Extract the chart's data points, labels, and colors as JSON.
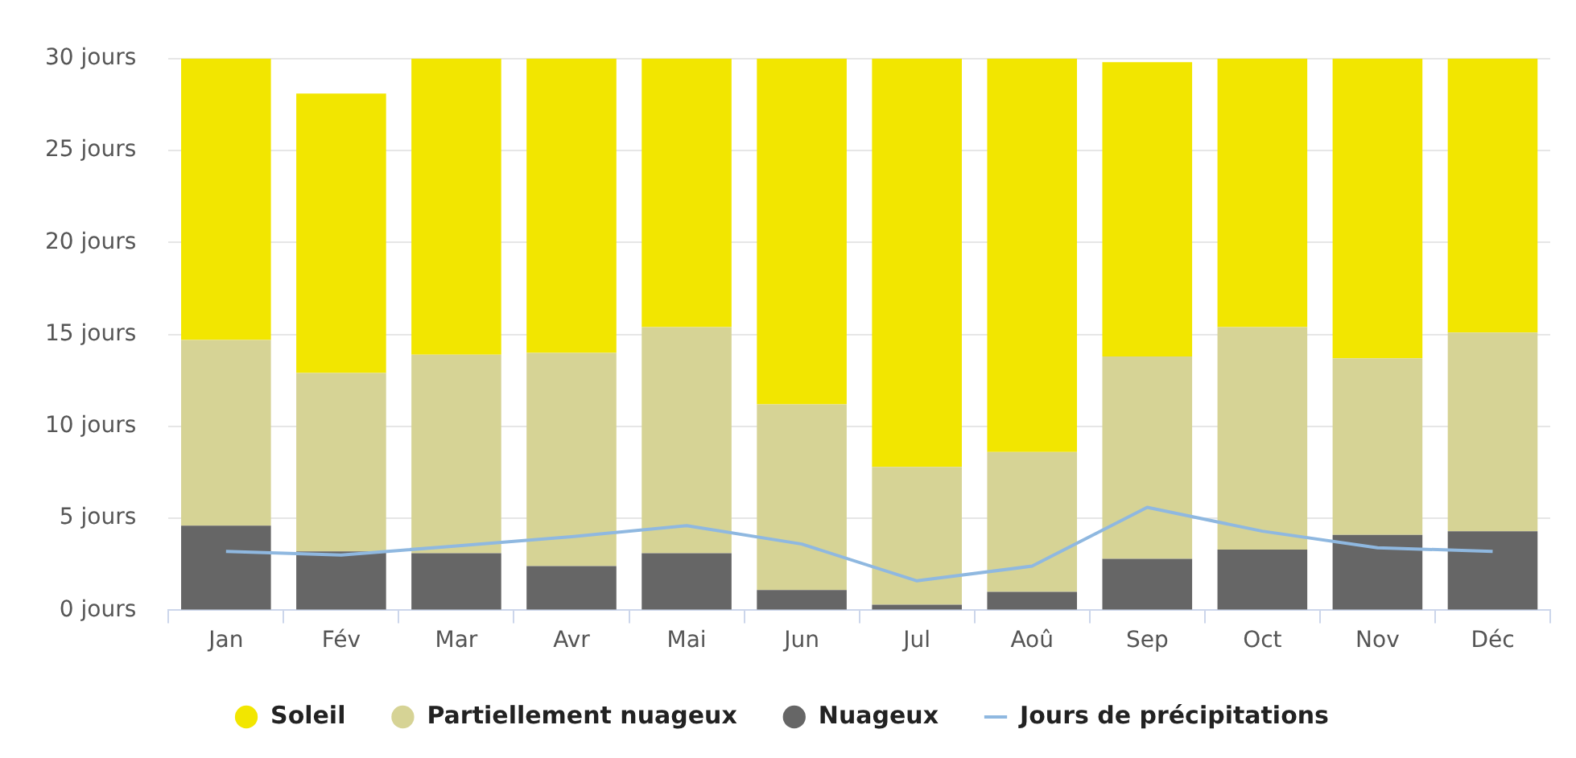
{
  "chart_data": {
    "type": "bar",
    "stacked": true,
    "categories": [
      "Jan",
      "Fév",
      "Mar",
      "Avr",
      "Mai",
      "Jun",
      "Jul",
      "Aoû",
      "Sep",
      "Oct",
      "Nov",
      "Déc"
    ],
    "series": [
      {
        "name": "Nuageux",
        "color": "#666666",
        "values": [
          4.6,
          3.2,
          3.1,
          2.4,
          3.1,
          1.1,
          0.3,
          1.0,
          2.8,
          3.3,
          4.1,
          4.3
        ]
      },
      {
        "name": "Partiellement nuageux",
        "color": "#d6d395",
        "values": [
          10.1,
          9.7,
          10.8,
          11.6,
          12.3,
          10.1,
          7.5,
          7.6,
          11.0,
          12.1,
          9.6,
          10.8
        ]
      },
      {
        "name": "Soleil",
        "color": "#f2e600",
        "values": [
          15.3,
          15.2,
          16.1,
          16.0,
          14.6,
          18.8,
          22.2,
          21.4,
          16.0,
          14.6,
          16.3,
          14.9
        ]
      },
      {
        "name": "Jours de précipitations",
        "type": "line",
        "color": "#8fb8e0",
        "marker": "none",
        "values": [
          3.2,
          3.0,
          3.5,
          4.0,
          4.6,
          3.6,
          1.6,
          2.4,
          5.6,
          4.3,
          3.4,
          3.2
        ]
      }
    ],
    "ylim": [
      0,
      30
    ],
    "yticks": [
      {
        "value": 0,
        "label": "0 jours"
      },
      {
        "value": 5,
        "label": "5 jours"
      },
      {
        "value": 10,
        "label": "10 jours"
      },
      {
        "value": 15,
        "label": "15 jours"
      },
      {
        "value": 20,
        "label": "20 jours"
      },
      {
        "value": 25,
        "label": "25 jours"
      },
      {
        "value": 30,
        "label": "30 jours"
      }
    ],
    "grid": "y",
    "legend": "bottom"
  }
}
